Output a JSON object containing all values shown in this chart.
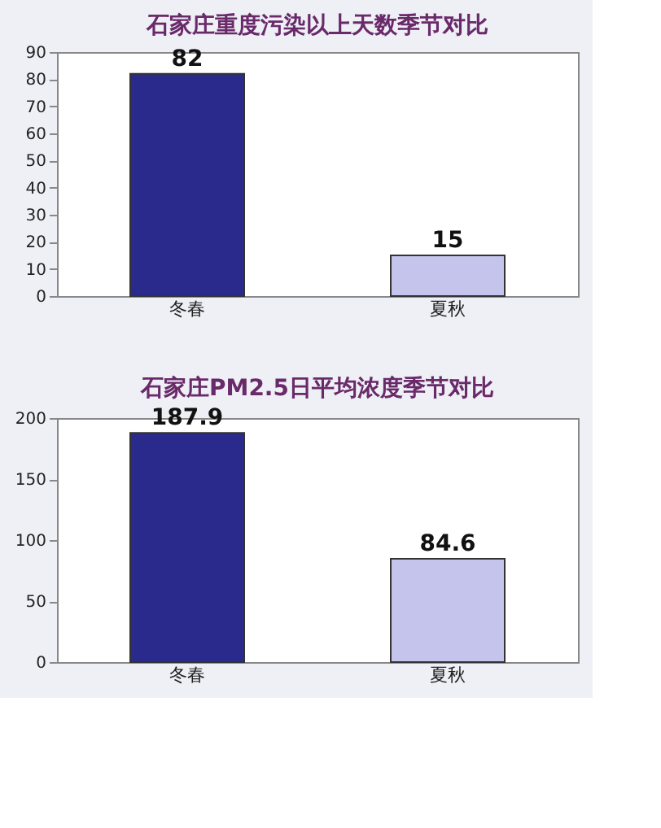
{
  "chart_data": [
    {
      "type": "bar",
      "title": "石家庄重度污染以上天数季节对比",
      "categories": [
        "冬春",
        "夏秋"
      ],
      "values": [
        82,
        15
      ],
      "colors": [
        "#2a2a8c",
        "#c4c4ec"
      ],
      "ylim": [
        0,
        90
      ],
      "yticks": [
        0,
        10,
        20,
        30,
        40,
        50,
        60,
        70,
        80,
        90
      ],
      "data_labels": true,
      "grid": false
    },
    {
      "type": "bar",
      "title": "石家庄PM2.5日平均浓度季节对比",
      "categories": [
        "冬春",
        "夏秋"
      ],
      "values": [
        187.9,
        84.6
      ],
      "colors": [
        "#2a2a8c",
        "#c4c4ec"
      ],
      "ylim": [
        0,
        200
      ],
      "yticks": [
        0,
        50,
        100,
        150,
        200
      ],
      "data_labels": true,
      "grid": false
    }
  ]
}
